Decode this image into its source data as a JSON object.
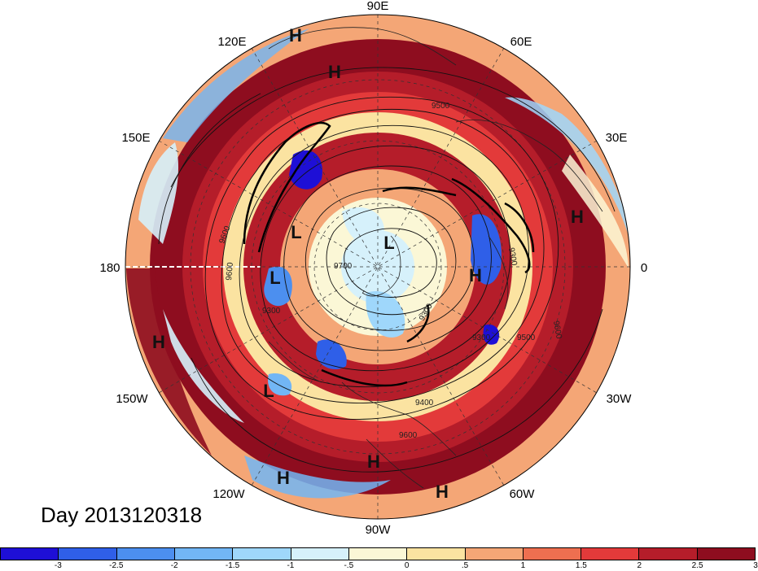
{
  "longitude_labels": {
    "lon_90e": "90E",
    "lon_60e": "60E",
    "lon_120e": "120E",
    "lon_150e": "150E",
    "lon_30e": "30E",
    "lon_180": "180",
    "lon_0": "0",
    "lon_150w": "150W",
    "lon_30w": "30W",
    "lon_120w": "120W",
    "lon_60w": "60W",
    "lon_90w": "90W"
  },
  "pressure_systems": [
    {
      "id": "h1",
      "label": "H"
    },
    {
      "id": "h2",
      "label": "H"
    },
    {
      "id": "h3",
      "label": "H"
    },
    {
      "id": "h4",
      "label": "H"
    },
    {
      "id": "h5",
      "label": "H"
    },
    {
      "id": "h6",
      "label": "H"
    },
    {
      "id": "h7",
      "label": "H"
    },
    {
      "id": "h8",
      "label": "H"
    },
    {
      "id": "l1",
      "label": "L"
    },
    {
      "id": "l2",
      "label": "L"
    },
    {
      "id": "l3",
      "label": "L"
    },
    {
      "id": "l4",
      "label": "L"
    }
  ],
  "contour_labels": [
    "9600",
    "9500",
    "9300",
    "9600",
    "9300",
    "9700",
    "9400",
    "9500",
    "9600",
    "9300",
    "9300",
    "9600"
  ],
  "date_label": "Day 2013120318",
  "colorbar": {
    "colors": [
      "#1e0fd6",
      "#2f5fe8",
      "#4c8fef",
      "#72b6f5",
      "#9fd7fb",
      "#d6f1fb",
      "#fbf7d6",
      "#fbe3a1",
      "#f4a676",
      "#ee6f50",
      "#e33a3a",
      "#b51d2a",
      "#8e0d1f"
    ],
    "ticks": [
      "-3",
      "-2.5",
      "-2",
      "-1.5",
      "-1",
      "-.5",
      "0",
      ".5",
      "1",
      "1.5",
      "2",
      "2.5",
      "3"
    ]
  },
  "colors": {
    "strong_positive": "#8e0d1f",
    "positive": "#e33a3a",
    "weak_positive": "#f4a676",
    "neutral": "#fbf7d6",
    "weak_negative": "#9fd7fb",
    "negative": "#4c8fef",
    "strong_negative": "#1e0fd6"
  }
}
